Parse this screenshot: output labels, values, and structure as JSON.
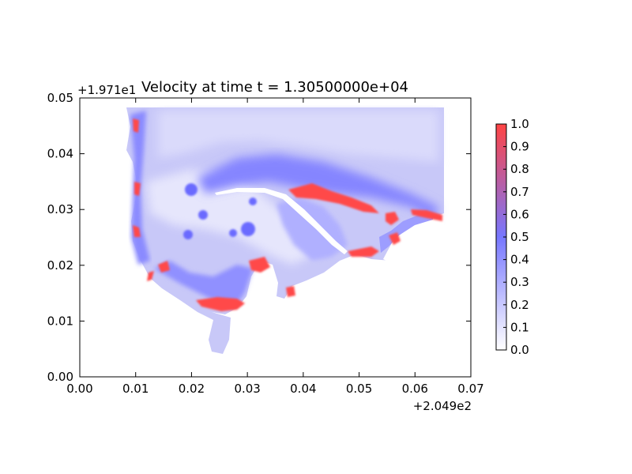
{
  "chart_data": {
    "type": "heatmap",
    "title": "Velocity at time t = 1.30500000e+04",
    "xlabel": "",
    "ylabel": "",
    "x_offset_label": "+2.049e2",
    "y_offset_label": "+1.971e1",
    "xlim": [
      0.0,
      0.07
    ],
    "ylim": [
      0.0,
      0.05
    ],
    "x_ticks": [
      "0.00",
      "0.01",
      "0.02",
      "0.03",
      "0.04",
      "0.05",
      "0.06",
      "0.07"
    ],
    "y_ticks": [
      "0.00",
      "0.01",
      "0.02",
      "0.03",
      "0.04",
      "0.05"
    ],
    "colorbar": {
      "range": [
        0.0,
        1.0
      ],
      "ticks": [
        "0.0",
        "0.1",
        "0.2",
        "0.3",
        "0.4",
        "0.5",
        "0.6",
        "0.7",
        "0.8",
        "0.9",
        "1.0"
      ],
      "colors": [
        "#ffffff",
        "#7777ff",
        "#ff4444"
      ]
    },
    "grid": false,
    "legend": "colorbar-right"
  }
}
